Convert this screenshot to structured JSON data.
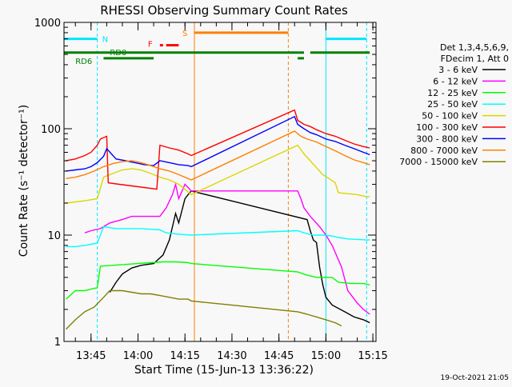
{
  "chart_data": {
    "type": "line",
    "title": "RHESSI Observing Summary Count Rates",
    "xlabel": "Start Time (15-Jun-13 13:36:22)",
    "ylabel": "Count Rate (s⁻¹ detector⁻¹)",
    "yscale": "log",
    "ylim": [
      1,
      1000
    ],
    "xlim": [
      "13:36:22",
      "15:16:00"
    ],
    "y_ticks": [
      {
        "value": 1,
        "label": "1"
      },
      {
        "value": 10,
        "label": "10"
      },
      {
        "value": 100,
        "label": "100"
      },
      {
        "value": 1000,
        "label": "1000"
      }
    ],
    "x_ticks": [
      {
        "value": "13:45",
        "label": "13:45"
      },
      {
        "value": "14:00",
        "label": "14:00"
      },
      {
        "value": "14:15",
        "label": "14:15"
      },
      {
        "value": "14:30",
        "label": "14:30"
      },
      {
        "value": "14:45",
        "label": "14:45"
      },
      {
        "value": "15:00",
        "label": "15:00"
      },
      {
        "value": "15:15",
        "label": "15:15"
      }
    ],
    "legend": {
      "placement": "right",
      "header": [
        "Det 1,3,4,5,6,9,",
        "FDecim 1, Att 0"
      ]
    },
    "series": [
      {
        "name": "3 - 6 keV",
        "color": "#000000",
        "points": [
          [
            "13:51",
            2.9
          ],
          [
            "13:53",
            3.6
          ],
          [
            "13:55",
            4.3
          ],
          [
            "13:58",
            4.9
          ],
          [
            "14:01",
            5.2
          ],
          [
            "14:05",
            5.4
          ],
          [
            "14:08",
            6.5
          ],
          [
            "14:10",
            9
          ],
          [
            "14:12",
            16
          ],
          [
            "14:13",
            13
          ],
          [
            "14:15",
            22
          ],
          [
            "14:16",
            24
          ],
          [
            "14:17",
            26
          ],
          [
            "14:54",
            14
          ],
          [
            "14:55",
            11
          ],
          [
            "14:56",
            9
          ],
          [
            "14:57",
            8.5
          ],
          [
            "14:58",
            5
          ],
          [
            "14:59",
            3.4
          ],
          [
            "15:00",
            2.6
          ],
          [
            "15:02",
            2.2
          ],
          [
            "15:06",
            1.9
          ],
          [
            "15:09",
            1.7
          ],
          [
            "15:12",
            1.6
          ],
          [
            "15:14",
            1.5
          ]
        ]
      },
      {
        "name": "6 - 12 keV",
        "color": "#ff00ff",
        "points": [
          [
            "13:43",
            10.5
          ],
          [
            "13:45",
            11
          ],
          [
            "13:48",
            11.5
          ],
          [
            "13:49",
            12
          ],
          [
            "13:51",
            13
          ],
          [
            "13:55",
            14
          ],
          [
            "13:58",
            15
          ],
          [
            "14:01",
            15
          ],
          [
            "14:04",
            15
          ],
          [
            "14:07",
            15
          ],
          [
            "14:09",
            18
          ],
          [
            "14:11",
            24
          ],
          [
            "14:12",
            30
          ],
          [
            "14:13",
            22
          ],
          [
            "14:15",
            30
          ],
          [
            "14:16",
            28
          ],
          [
            "14:17",
            26
          ],
          [
            "14:51",
            26
          ],
          [
            "14:52",
            22
          ],
          [
            "14:53",
            18
          ],
          [
            "14:55",
            15
          ],
          [
            "14:58",
            12
          ],
          [
            "15:00",
            10
          ],
          [
            "15:02",
            8
          ],
          [
            "15:05",
            5
          ],
          [
            "15:07",
            3
          ],
          [
            "15:10",
            2.3
          ],
          [
            "15:12",
            2
          ],
          [
            "15:14",
            1.8
          ]
        ]
      },
      {
        "name": "12 - 25 keV",
        "color": "#00ff00",
        "points": [
          [
            "13:37",
            2.5
          ],
          [
            "13:40",
            3
          ],
          [
            "13:43",
            3
          ],
          [
            "13:45",
            3.1
          ],
          [
            "13:47",
            3.2
          ],
          [
            "13:48",
            5.1
          ],
          [
            "13:52",
            5.2
          ],
          [
            "13:56",
            5.3
          ],
          [
            "14:00",
            5.4
          ],
          [
            "14:04",
            5.5
          ],
          [
            "14:08",
            5.6
          ],
          [
            "14:12",
            5.6
          ],
          [
            "14:16",
            5.5
          ],
          [
            "14:17",
            5.4
          ],
          [
            "14:51",
            4.5
          ],
          [
            "14:54",
            4.2
          ],
          [
            "14:57",
            4
          ],
          [
            "15:00",
            4
          ],
          [
            "15:02",
            4
          ],
          [
            "15:04",
            3.6
          ],
          [
            "15:08",
            3.5
          ],
          [
            "15:12",
            3.5
          ],
          [
            "15:14",
            3.4
          ]
        ]
      },
      {
        "name": "25 - 50 keV",
        "color": "#00ffff",
        "points": [
          [
            "13:37",
            7.8
          ],
          [
            "13:40",
            7.8
          ],
          [
            "13:43",
            8
          ],
          [
            "13:45",
            8.2
          ],
          [
            "13:47",
            8.4
          ],
          [
            "13:49",
            12
          ],
          [
            "13:53",
            11.5
          ],
          [
            "13:57",
            11.5
          ],
          [
            "14:01",
            11.5
          ],
          [
            "14:05",
            11.3
          ],
          [
            "14:07",
            11.2
          ],
          [
            "14:09",
            10.5
          ],
          [
            "14:13",
            10.2
          ],
          [
            "14:17",
            10
          ],
          [
            "14:51",
            11
          ],
          [
            "14:53",
            10.5
          ],
          [
            "14:56",
            10
          ],
          [
            "14:59",
            10
          ],
          [
            "15:02",
            9.8
          ],
          [
            "15:04",
            9.5
          ],
          [
            "15:07",
            9.2
          ],
          [
            "15:10",
            9.1
          ],
          [
            "15:13",
            9
          ],
          [
            "15:14",
            9
          ]
        ]
      },
      {
        "name": "50 - 100 keV",
        "color": "#d8d800",
        "points": [
          [
            "13:37",
            20
          ],
          [
            "13:40",
            20.5
          ],
          [
            "13:43",
            21
          ],
          [
            "13:45",
            21.5
          ],
          [
            "13:47",
            22
          ],
          [
            "13:49",
            35
          ],
          [
            "13:52",
            38
          ],
          [
            "13:55",
            41
          ],
          [
            "13:58",
            42
          ],
          [
            "14:01",
            41
          ],
          [
            "14:04",
            38
          ],
          [
            "14:07",
            35
          ],
          [
            "14:10",
            33
          ],
          [
            "14:13",
            30
          ],
          [
            "14:15",
            27
          ],
          [
            "14:17",
            24
          ],
          [
            "14:51",
            70
          ],
          [
            "14:53",
            58
          ],
          [
            "14:55",
            50
          ],
          [
            "14:57",
            43
          ],
          [
            "14:59",
            37
          ],
          [
            "15:01",
            34
          ],
          [
            "15:03",
            31
          ],
          [
            "15:04",
            25
          ],
          [
            "15:07",
            24.5
          ],
          [
            "15:10",
            24
          ],
          [
            "15:13",
            23
          ],
          [
            "15:14",
            23
          ]
        ]
      },
      {
        "name": "100 - 300 keV",
        "color": "#ff0000",
        "points": [
          [
            "13:37",
            50
          ],
          [
            "13:40",
            52
          ],
          [
            "13:43",
            56
          ],
          [
            "13:45",
            60
          ],
          [
            "13:47",
            70
          ],
          [
            "13:48",
            80
          ],
          [
            "13:50",
            85
          ],
          [
            "13:50.5",
            31
          ],
          [
            "13:54",
            30
          ],
          [
            "13:58",
            29
          ],
          [
            "14:02",
            28
          ],
          [
            "14:06",
            27
          ],
          [
            "14:07",
            70
          ],
          [
            "14:10",
            66
          ],
          [
            "14:13",
            63
          ],
          [
            "14:16",
            58
          ],
          [
            "14:17",
            56
          ],
          [
            "14:50",
            150
          ],
          [
            "14:51",
            120
          ],
          [
            "14:53",
            110
          ],
          [
            "14:55",
            105
          ],
          [
            "14:57",
            98
          ],
          [
            "15:00",
            90
          ],
          [
            "15:03",
            85
          ],
          [
            "15:06",
            78
          ],
          [
            "15:09",
            72
          ],
          [
            "15:12",
            68
          ],
          [
            "15:14",
            66
          ]
        ]
      },
      {
        "name": "300 - 800 keV",
        "color": "#0000ff",
        "points": [
          [
            "13:37",
            40
          ],
          [
            "13:40",
            41
          ],
          [
            "13:43",
            42
          ],
          [
            "13:45",
            44
          ],
          [
            "13:47",
            48
          ],
          [
            "13:49",
            55
          ],
          [
            "13:50",
            65
          ],
          [
            "13:53",
            52
          ],
          [
            "13:56",
            50
          ],
          [
            "13:59",
            48
          ],
          [
            "14:02",
            46
          ],
          [
            "14:05",
            45
          ],
          [
            "14:07",
            50
          ],
          [
            "14:10",
            48
          ],
          [
            "14:13",
            46
          ],
          [
            "14:16",
            45
          ],
          [
            "14:17",
            44
          ],
          [
            "14:50",
            130
          ],
          [
            "14:51",
            110
          ],
          [
            "14:53",
            100
          ],
          [
            "14:55",
            92
          ],
          [
            "14:57",
            88
          ],
          [
            "15:00",
            80
          ],
          [
            "15:03",
            76
          ],
          [
            "15:06",
            70
          ],
          [
            "15:09",
            65
          ],
          [
            "15:12",
            60
          ],
          [
            "15:14",
            57
          ]
        ]
      },
      {
        "name": "800 - 7000 keV",
        "color": "#ff8000",
        "points": [
          [
            "13:37",
            34
          ],
          [
            "13:40",
            35
          ],
          [
            "13:43",
            37
          ],
          [
            "13:46",
            40
          ],
          [
            "13:49",
            44
          ],
          [
            "13:52",
            47
          ],
          [
            "13:55",
            49
          ],
          [
            "13:58",
            50
          ],
          [
            "14:01",
            48
          ],
          [
            "14:04",
            45
          ],
          [
            "14:07",
            42
          ],
          [
            "14:10",
            40
          ],
          [
            "14:13",
            37
          ],
          [
            "14:16",
            34
          ],
          [
            "14:17",
            33
          ],
          [
            "14:50",
            95
          ],
          [
            "14:52",
            85
          ],
          [
            "14:54",
            80
          ],
          [
            "14:57",
            75
          ],
          [
            "15:00",
            68
          ],
          [
            "15:03",
            62
          ],
          [
            "15:06",
            56
          ],
          [
            "15:09",
            51
          ],
          [
            "15:12",
            48
          ],
          [
            "15:14",
            46
          ]
        ]
      },
      {
        "name": "7000 - 15000 keV",
        "color": "#808000",
        "points": [
          [
            "13:37",
            1.3
          ],
          [
            "13:40",
            1.6
          ],
          [
            "13:43",
            1.9
          ],
          [
            "13:46",
            2.1
          ],
          [
            "13:49",
            2.6
          ],
          [
            "13:51",
            3
          ],
          [
            "13:55",
            3
          ],
          [
            "13:58",
            2.9
          ],
          [
            "14:01",
            2.8
          ],
          [
            "14:04",
            2.8
          ],
          [
            "14:07",
            2.7
          ],
          [
            "14:10",
            2.6
          ],
          [
            "14:13",
            2.5
          ],
          [
            "14:16",
            2.5
          ],
          [
            "14:17",
            2.4
          ],
          [
            "14:51",
            1.9
          ],
          [
            "14:54",
            1.8
          ],
          [
            "14:57",
            1.7
          ],
          [
            "15:00",
            1.6
          ],
          [
            "15:03",
            1.5
          ],
          [
            "15:05",
            1.4
          ]
        ]
      }
    ],
    "annotations": {
      "night": {
        "label": "N",
        "color": "#00e5ff",
        "level": 700,
        "segments": [
          [
            "13:36:22",
            "13:47"
          ],
          [
            "15:00",
            "15:13"
          ]
        ]
      },
      "flare": {
        "label": "F",
        "color": "#ff0000",
        "level": 610,
        "segments": [
          [
            "14:07",
            "14:08"
          ],
          [
            "14:09",
            "14:13"
          ]
        ]
      },
      "saa": {
        "label": "S",
        "color": "#ff8000",
        "level": 800,
        "segments": [
          [
            "14:18",
            "14:48"
          ]
        ]
      },
      "rd0": {
        "label": "RD0",
        "color": "#008000",
        "level": 520,
        "segments": [
          [
            "13:36:22",
            "14:05"
          ],
          [
            "14:05",
            "14:51"
          ],
          [
            "14:51",
            "14:53"
          ],
          [
            "14:55",
            "15:14"
          ]
        ]
      },
      "rd6": {
        "label": "RD6",
        "color": "#008000",
        "level": 460,
        "segments": [
          [
            "13:49",
            "14:05"
          ],
          [
            "14:51",
            "14:53"
          ]
        ]
      }
    },
    "vertical_lines": [
      {
        "time": "13:47",
        "color": "#00e5ff",
        "style": "dashed"
      },
      {
        "time": "14:18",
        "color": "#ff8000",
        "style": "solid"
      },
      {
        "time": "14:48",
        "color": "#ff8000",
        "style": "dashed"
      },
      {
        "time": "15:00",
        "color": "#00e5ff",
        "style": "solid"
      },
      {
        "time": "15:13",
        "color": "#00e5ff",
        "style": "dashed"
      }
    ],
    "footer": "19-Oct-2021 21:05"
  }
}
